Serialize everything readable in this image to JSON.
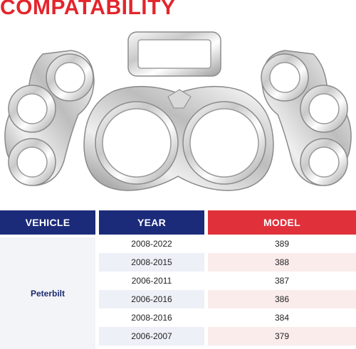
{
  "title": "COMPATABILITY",
  "colors": {
    "title_red": "#e3252c",
    "header_navy": "#1b2b7a",
    "header_red": "#e0313b"
  },
  "table": {
    "headers": {
      "vehicle": "VEHICLE",
      "year": "YEAR",
      "model": "MODEL"
    },
    "vehicle": "Peterbilt",
    "rows": [
      {
        "year": "2008-2022",
        "model": "389"
      },
      {
        "year": "2008-2015",
        "model": "388"
      },
      {
        "year": "2006-2011",
        "model": "387"
      },
      {
        "year": "2006-2016",
        "model": "386"
      },
      {
        "year": "2008-2016",
        "model": "384"
      },
      {
        "year": "2006-2007",
        "model": "379"
      }
    ]
  }
}
